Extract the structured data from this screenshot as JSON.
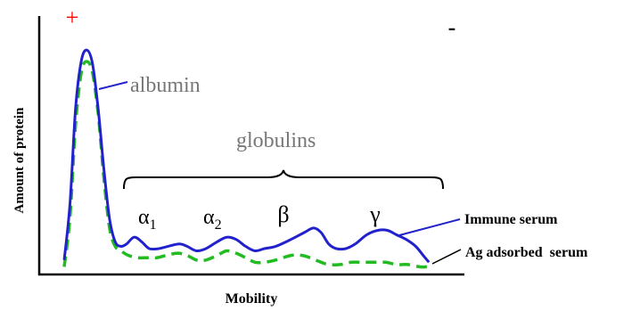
{
  "chart_data": {
    "type": "line",
    "title": "",
    "xlabel": "Mobility",
    "ylabel": "Amount of protein",
    "xlim": [
      0,
      100
    ],
    "ylim": [
      0,
      100
    ],
    "grid": false,
    "anode_label": "+",
    "cathode_label": "-",
    "anode_color": "#ff0000",
    "annotations": {
      "albumin": "albumin",
      "globulins": "globulins",
      "alpha1": "α",
      "alpha1_sub": "1",
      "alpha2": "α",
      "alpha2_sub": "2",
      "beta": "β",
      "gamma": "γ"
    },
    "series": [
      {
        "name": "Immune serum",
        "color": "#2222cc",
        "dash": "solid",
        "points": [
          [
            0,
            4
          ],
          [
            1.5,
            28
          ],
          [
            3,
            70
          ],
          [
            4.5,
            91
          ],
          [
            6,
            96
          ],
          [
            7.5,
            90
          ],
          [
            9,
            70
          ],
          [
            10.5,
            44
          ],
          [
            12,
            22
          ],
          [
            13.5,
            12
          ],
          [
            15,
            10
          ],
          [
            16.5,
            11
          ],
          [
            18.5,
            14
          ],
          [
            20.5,
            12
          ],
          [
            22.5,
            9
          ],
          [
            25,
            9
          ],
          [
            27.5,
            10
          ],
          [
            30.5,
            11
          ],
          [
            32.5,
            10
          ],
          [
            35,
            8
          ],
          [
            37.5,
            9
          ],
          [
            40.5,
            12
          ],
          [
            43,
            14
          ],
          [
            45.5,
            13
          ],
          [
            48,
            10
          ],
          [
            50.5,
            8
          ],
          [
            53,
            9
          ],
          [
            56,
            10
          ],
          [
            60,
            13
          ],
          [
            63.5,
            16
          ],
          [
            66,
            18
          ],
          [
            68,
            16
          ],
          [
            70,
            11
          ],
          [
            72,
            9
          ],
          [
            74.5,
            9
          ],
          [
            77,
            11
          ],
          [
            80,
            15
          ],
          [
            83,
            17
          ],
          [
            85.5,
            17
          ],
          [
            88,
            15
          ],
          [
            90.5,
            13
          ],
          [
            93,
            10
          ],
          [
            95,
            6
          ],
          [
            96.5,
            3
          ]
        ]
      },
      {
        "name": "Ag adsorbed  serum",
        "color": "#22bb22",
        "dash": "dashed",
        "points": [
          [
            0,
            1
          ],
          [
            1.5,
            22
          ],
          [
            3,
            63
          ],
          [
            4.5,
            86
          ],
          [
            6,
            91
          ],
          [
            7.5,
            86
          ],
          [
            9,
            68
          ],
          [
            10.5,
            40
          ],
          [
            12,
            18
          ],
          [
            13.5,
            10
          ],
          [
            15,
            8
          ],
          [
            17,
            6
          ],
          [
            19.5,
            5
          ],
          [
            22,
            5
          ],
          [
            24.5,
            5
          ],
          [
            27,
            6
          ],
          [
            30,
            7
          ],
          [
            32.5,
            6
          ],
          [
            35,
            4
          ],
          [
            37.5,
            4
          ],
          [
            40.5,
            6
          ],
          [
            43,
            8
          ],
          [
            45.5,
            7
          ],
          [
            48,
            5
          ],
          [
            50.5,
            3
          ],
          [
            53,
            3
          ],
          [
            56,
            4
          ],
          [
            60,
            6
          ],
          [
            63,
            6
          ],
          [
            65,
            5
          ],
          [
            68,
            3
          ],
          [
            70,
            2
          ],
          [
            73,
            2
          ],
          [
            76,
            3
          ],
          [
            79,
            3
          ],
          [
            82,
            3
          ],
          [
            85,
            3
          ],
          [
            88,
            2
          ],
          [
            91,
            2
          ],
          [
            94,
            1
          ],
          [
            96,
            1
          ]
        ]
      }
    ]
  }
}
